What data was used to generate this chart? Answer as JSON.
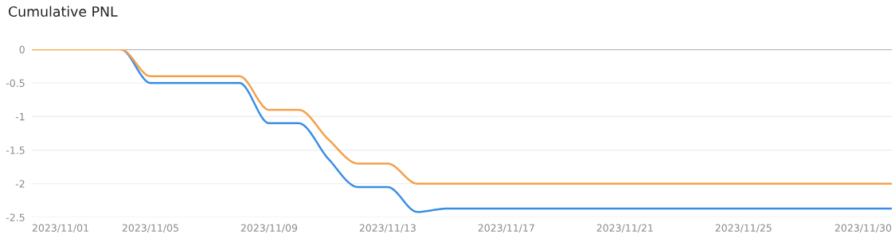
{
  "chart_data": {
    "type": "line",
    "title": "Cumulative PNL",
    "x": [
      "2023-11-01",
      "2023-11-02",
      "2023-11-03",
      "2023-11-04",
      "2023-11-05",
      "2023-11-06",
      "2023-11-07",
      "2023-11-08",
      "2023-11-09",
      "2023-11-10",
      "2023-11-11",
      "2023-11-12",
      "2023-11-13",
      "2023-11-14",
      "2023-11-15",
      "2023-11-16",
      "2023-11-17",
      "2023-11-18",
      "2023-11-19",
      "2023-11-20",
      "2023-11-21",
      "2023-11-22",
      "2023-11-23",
      "2023-11-24",
      "2023-11-25",
      "2023-11-26",
      "2023-11-27",
      "2023-11-28",
      "2023-11-29",
      "2023-11-30"
    ],
    "series": [
      {
        "color": "#3a8ee6",
        "values": [
          null,
          null,
          null,
          0,
          -0.5,
          -0.5,
          -0.5,
          -0.5,
          -1.1,
          -1.1,
          -1.63,
          -2.05,
          -2.05,
          -2.42,
          -2.37,
          -2.37,
          -2.37,
          -2.37,
          -2.37,
          -2.37,
          -2.37,
          -2.37,
          -2.37,
          -2.37,
          -2.37,
          -2.37,
          -2.37,
          -2.37,
          -2.37,
          -2.37
        ]
      },
      {
        "color": "#f5a04a",
        "values": [
          0,
          0,
          0,
          0,
          -0.4,
          -0.4,
          -0.4,
          -0.4,
          -0.9,
          -0.9,
          -1.34,
          -1.7,
          -1.7,
          -2.0,
          -2.0,
          -2.0,
          -2.0,
          -2.0,
          -2.0,
          -2.0,
          -2.0,
          -2.0,
          -2.0,
          -2.0,
          -2.0,
          -2.0,
          -2.0,
          -2.0,
          -2.0,
          -2.0
        ]
      }
    ],
    "xlim": [
      "2023-11-01",
      "2023-11-30"
    ],
    "xticks": [
      {
        "value": "2023-11-01",
        "label": "2023/11/01"
      },
      {
        "value": "2023-11-05",
        "label": "2023/11/05"
      },
      {
        "value": "2023-11-09",
        "label": "2023/11/09"
      },
      {
        "value": "2023-11-13",
        "label": "2023/11/13"
      },
      {
        "value": "2023-11-17",
        "label": "2023/11/17"
      },
      {
        "value": "2023-11-21",
        "label": "2023/11/21"
      },
      {
        "value": "2023-11-25",
        "label": "2023/11/25"
      },
      {
        "value": "2023-11-30",
        "label": "2023/11/30"
      }
    ],
    "ylim": [
      -2.5,
      0
    ],
    "yticks": [
      {
        "value": 0,
        "label": "0"
      },
      {
        "value": -0.5,
        "label": "-0.5"
      },
      {
        "value": -1,
        "label": "-1"
      },
      {
        "value": -1.5,
        "label": "-1.5"
      },
      {
        "value": -2,
        "label": "-2"
      },
      {
        "value": -2.5,
        "label": "-2.5"
      }
    ],
    "ref_lines": [
      {
        "axis": "y",
        "value": 0,
        "color": "#666666"
      }
    ],
    "grid": "y",
    "marker": "none",
    "line_style": "solid"
  }
}
